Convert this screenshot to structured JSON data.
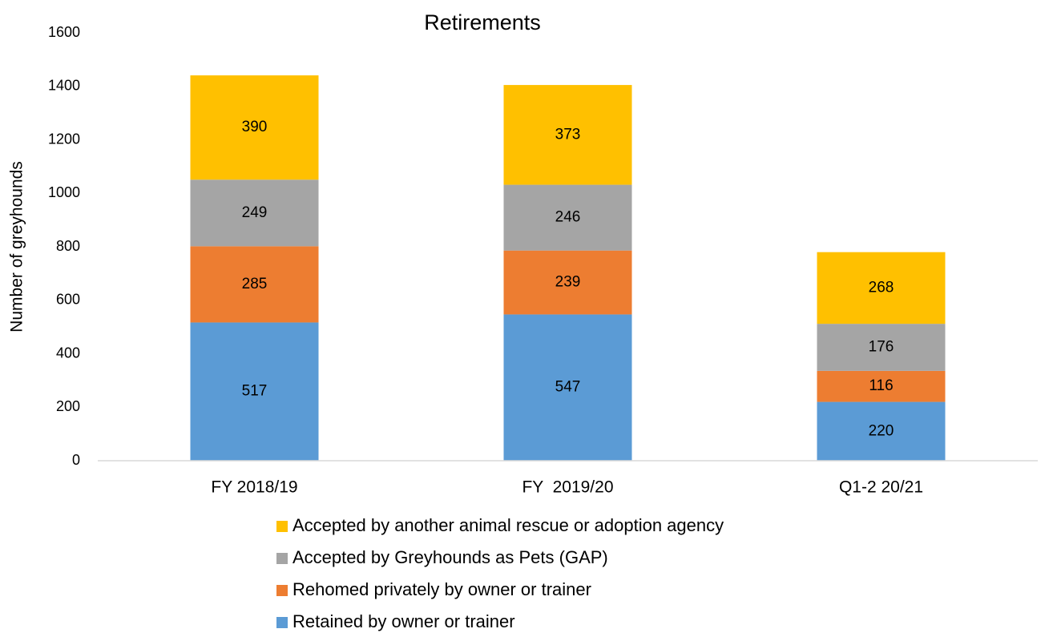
{
  "chart_data": {
    "type": "stacked_bar",
    "title": "Retirements",
    "y_label": "Number of greyhounds",
    "categories": [
      "FY 2018/19",
      "FY  2019/20",
      "Q1-2 20/21"
    ],
    "series": [
      {
        "name": "Retained by owner or trainer",
        "color": "#5b9bd5",
        "values": [
          517,
          547,
          220
        ]
      },
      {
        "name": "Rehomed privately by owner or trainer",
        "color": "#ed7d31",
        "values": [
          285,
          239,
          116
        ]
      },
      {
        "name": "Accepted by Greyhounds as Pets (GAP)",
        "color": "#a5a5a5",
        "values": [
          249,
          246,
          176
        ]
      },
      {
        "name": "Accepted by another animal rescue or adoption agency",
        "color": "#ffc000",
        "values": [
          390,
          373,
          268
        ]
      }
    ],
    "ylim": [
      0,
      1600
    ],
    "yticks": [
      0,
      200,
      400,
      600,
      800,
      1000,
      1200,
      1400,
      1600
    ],
    "grid": false,
    "legend": "bottom"
  }
}
